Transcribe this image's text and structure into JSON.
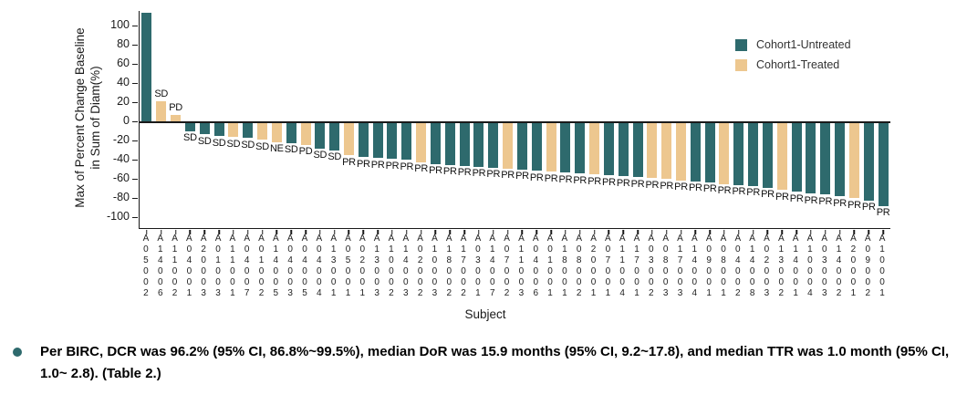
{
  "chart_data": {
    "type": "bar",
    "title": "",
    "xlabel": "Subject",
    "ylabel_lines": [
      "Max of Percent Change Baseline",
      "in Sum of Diam(%)"
    ],
    "ylim": [
      -100,
      115
    ],
    "yticks": [
      100,
      80,
      60,
      40,
      20,
      0,
      -20,
      -40,
      -60,
      -80,
      -100
    ],
    "grid": "off",
    "legend_position": "top-right",
    "legend": [
      {
        "key": "U",
        "label": "Cohort1-Untreated",
        "color": "#2e6a6d"
      },
      {
        "key": "T",
        "label": "Cohort1-Treated",
        "color": "#edc78f"
      }
    ],
    "subjects": [
      "A05002",
      "A14006",
      "A11002",
      "A04001",
      "A20003",
      "A01003",
      "A11001",
      "A04007",
      "A01002",
      "A14005",
      "A04003",
      "A04005",
      "A04004",
      "A13001",
      "A05001",
      "A02001",
      "A13003",
      "A10002",
      "A14003",
      "A02002",
      "A10003",
      "A18002",
      "A17002",
      "A03001",
      "A14007",
      "A07002",
      "A11003",
      "A04006",
      "A01001",
      "A18001",
      "A08002",
      "A20001",
      "A07001",
      "A11004",
      "A17001",
      "A03002",
      "A08003",
      "A17003",
      "A14004",
      "A09001",
      "A08001",
      "A04002",
      "A14008",
      "A02003",
      "A13002",
      "A14001",
      "A10004",
      "A03003",
      "A14002",
      "A20001",
      "A09002",
      "A10001"
    ],
    "cohorts": [
      "U",
      "T",
      "T",
      "U",
      "U",
      "U",
      "T",
      "U",
      "T",
      "T",
      "U",
      "T",
      "U",
      "U",
      "T",
      "U",
      "U",
      "U",
      "U",
      "T",
      "U",
      "U",
      "U",
      "U",
      "U",
      "T",
      "U",
      "U",
      "T",
      "U",
      "U",
      "T",
      "U",
      "U",
      "U",
      "T",
      "T",
      "T",
      "U",
      "U",
      "T",
      "U",
      "U",
      "U",
      "T",
      "U",
      "U",
      "U",
      "U",
      "T",
      "U",
      "U"
    ],
    "values": [
      113,
      21,
      7,
      -9,
      -12,
      -14,
      -15,
      -16,
      -18,
      -20,
      -21,
      -23,
      -27,
      -29,
      -34,
      -36,
      -37,
      -38,
      -39,
      -41,
      -43,
      -44,
      -45,
      -46,
      -47,
      -48,
      -49,
      -50,
      -51,
      -52,
      -53,
      -54,
      -55,
      -56,
      -57,
      -58,
      -59,
      -60,
      -61,
      -62,
      -64,
      -65,
      -66,
      -68,
      -70,
      -72,
      -74,
      -75,
      -77,
      -79,
      -81,
      -87
    ],
    "bar_labels": [
      "",
      "SD",
      "PD",
      "SD",
      "SD",
      "SD",
      "SD",
      "SD",
      "SD",
      "NE",
      "SD",
      "PD",
      "SD",
      "SD",
      "PR",
      "PR",
      "PR",
      "PR",
      "PR",
      "PR",
      "PR",
      "PR",
      "PR",
      "PR",
      "PR",
      "PR",
      "PR",
      "PR",
      "PR",
      "PR",
      "PR",
      "PR",
      "PR",
      "PR",
      "PR",
      "PR",
      "PR",
      "PR",
      "PR",
      "PR",
      "PR",
      "PR",
      "PR",
      "PR",
      "PR",
      "PR",
      "PR",
      "PR",
      "PR",
      "PR",
      "PR",
      "PR"
    ]
  },
  "footnote": {
    "bullet_color": "#2e6a6d",
    "text": "Per BIRC, DCR was 96.2% (95% CI, 86.8%~99.5%), median DoR was 15.9 months (95% CI, 9.2~17.8), and median TTR was 1.0 month (95% CI, 1.0~ 2.8). (Table 2.)"
  }
}
